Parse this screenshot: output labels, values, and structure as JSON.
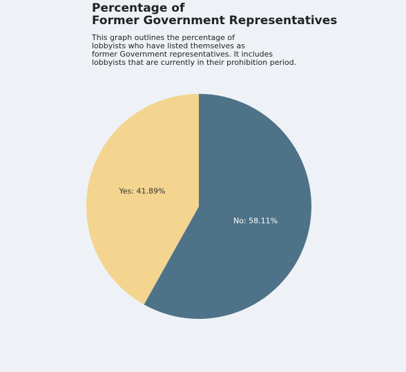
{
  "chart_data": {
    "type": "pie",
    "title": [
      "Percentage of",
      "Former Government Representatives"
    ],
    "subtitle": [
      "This graph outlines the percentage of",
      "lobbyists who have listed themselves as",
      "former Government representatives. It includes",
      "lobbyists that are currently in their prohibition period."
    ],
    "categories": [
      "No",
      "Yes"
    ],
    "values": [
      58.11,
      41.89
    ],
    "value_labels": [
      "No: 58.11%",
      "Yes: 41.89%"
    ],
    "colors": [
      "#4e7288",
      "#f3d58f"
    ],
    "label_colors": [
      "#ffffff",
      "#333333"
    ]
  }
}
